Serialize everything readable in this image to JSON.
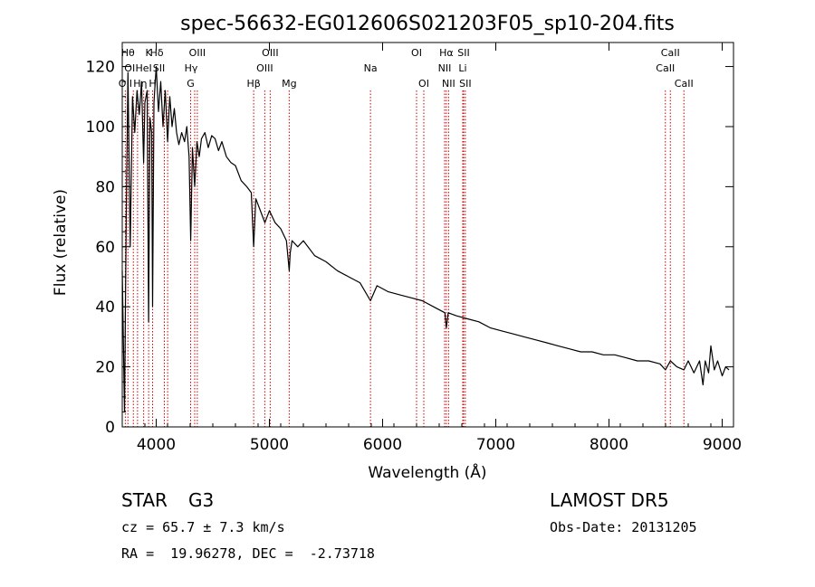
{
  "chart_data": {
    "type": "line",
    "title": "spec-56632-EG012606S021203F05_sp10-204.fits",
    "xlabel": "Wavelength (Å)",
    "ylabel": "Flux (relative)",
    "xlim": [
      3700,
      9100
    ],
    "ylim": [
      0,
      128
    ],
    "xticks": [
      4000,
      5000,
      6000,
      7000,
      8000,
      9000
    ],
    "yticks": [
      0,
      20,
      40,
      60,
      80,
      100,
      120
    ],
    "grid": false,
    "line_color": "#000000",
    "marker_color": "#cc0000",
    "series": [
      {
        "x": [
          3700,
          3720,
          3735,
          3750,
          3770,
          3790,
          3810,
          3830,
          3850,
          3870,
          3889,
          3900,
          3920,
          3933,
          3945,
          3960,
          3968,
          3980,
          4000,
          4020,
          4040,
          4060,
          4080,
          4101,
          4120,
          4140,
          4160,
          4180,
          4200,
          4225,
          4250,
          4270,
          4290,
          4305,
          4320,
          4340,
          4360,
          4380,
          4400,
          4430,
          4460,
          4490,
          4520,
          4550,
          4580,
          4620,
          4660,
          4700,
          4750,
          4800,
          4840,
          4861,
          4880,
          4920,
          4960,
          5000,
          5050,
          5100,
          5150,
          5175,
          5184,
          5200,
          5250,
          5300,
          5400,
          5500,
          5600,
          5700,
          5800,
          5893,
          5950,
          6050,
          6150,
          6250,
          6350,
          6450,
          6550,
          6563,
          6580,
          6650,
          6750,
          6850,
          6950,
          7050,
          7150,
          7250,
          7350,
          7450,
          7550,
          7650,
          7750,
          7850,
          7950,
          8050,
          8150,
          8250,
          8350,
          8450,
          8498,
          8542,
          8600,
          8662,
          8700,
          8750,
          8800,
          8830,
          8850,
          8880,
          8900,
          8930,
          8960,
          9000,
          9030,
          9060
        ],
        "y": [
          52,
          5,
          70,
          118,
          60,
          110,
          98,
          112,
          104,
          115,
          88,
          108,
          112,
          35,
          103,
          98,
          40,
          108,
          120,
          105,
          115,
          100,
          112,
          95,
          110,
          100,
          106,
          98,
          94,
          98,
          95,
          100,
          90,
          62,
          93,
          80,
          95,
          90,
          96,
          98,
          93,
          97,
          96,
          92,
          95,
          90,
          88,
          87,
          82,
          80,
          78,
          60,
          76,
          72,
          68,
          72,
          68,
          66,
          62,
          52,
          58,
          62,
          60,
          62,
          57,
          55,
          52,
          50,
          48,
          42,
          47,
          45,
          44,
          43,
          42,
          40,
          38,
          33,
          38,
          37,
          36,
          35,
          33,
          32,
          31,
          30,
          29,
          28,
          27,
          26,
          25,
          25,
          24,
          24,
          23,
          22,
          22,
          21,
          19,
          22,
          20,
          19,
          22,
          18,
          22,
          14,
          22,
          18,
          27,
          19,
          22,
          17,
          20,
          19
        ]
      }
    ],
    "line_markers": [
      {
        "x": 3727,
        "label": "OII",
        "row": 3,
        "offset": 0
      },
      {
        "x": 3750,
        "label": "Hθ",
        "row": 1,
        "offset": 0
      },
      {
        "x": 3798,
        "label": "OI",
        "row": 2,
        "offset": -4
      },
      {
        "x": 3835,
        "label": "Hη",
        "row": 3,
        "offset": 3
      },
      {
        "x": 3889,
        "label": "HeI",
        "row": 2,
        "offset": 0
      },
      {
        "x": 3933,
        "label": "K",
        "row": 1,
        "offset": 0
      },
      {
        "x": 3968,
        "label": "H",
        "row": 3,
        "offset": 0
      },
      {
        "x": 4072,
        "label": "SII",
        "row": 2,
        "offset": -6
      },
      {
        "x": 4101,
        "label": "Hδ",
        "row": 1,
        "offset": -12
      },
      {
        "x": 4304,
        "label": "G",
        "row": 3,
        "offset": 0
      },
      {
        "x": 4340,
        "label": "Hγ",
        "row": 2,
        "offset": -4
      },
      {
        "x": 4363,
        "label": "OIII",
        "row": 1,
        "offset": 0
      },
      {
        "x": 4861,
        "label": "Hβ",
        "row": 3,
        "offset": 0
      },
      {
        "x": 4959,
        "label": "OIII",
        "row": 2,
        "offset": 0
      },
      {
        "x": 5007,
        "label": "OIII",
        "row": 1,
        "offset": 0
      },
      {
        "x": 5175,
        "label": "Mg",
        "row": 3,
        "offset": 0
      },
      {
        "x": 5893,
        "label": "Na",
        "row": 2,
        "offset": 0
      },
      {
        "x": 6300,
        "label": "OI",
        "row": 1,
        "offset": 0
      },
      {
        "x": 6364,
        "label": "OI",
        "row": 3,
        "offset": 0
      },
      {
        "x": 6548,
        "label": "NII",
        "row": 2,
        "offset": 0
      },
      {
        "x": 6563,
        "label": "Hα",
        "row": 1,
        "offset": 0
      },
      {
        "x": 6583,
        "label": "NII",
        "row": 3,
        "offset": 0
      },
      {
        "x": 6708,
        "label": "Li",
        "row": 2,
        "offset": 0
      },
      {
        "x": 6716,
        "label": "SII",
        "row": 1,
        "offset": 0
      },
      {
        "x": 6731,
        "label": "SII",
        "row": 3,
        "offset": 0
      },
      {
        "x": 8498,
        "label": "CaII",
        "row": 2,
        "offset": 0
      },
      {
        "x": 8542,
        "label": "CaII",
        "row": 1,
        "offset": 0
      },
      {
        "x": 8662,
        "label": "CaII",
        "row": 3,
        "offset": 0
      }
    ]
  },
  "info": {
    "class_label": "STAR",
    "subclass_label": "G3",
    "cz_text": "cz = 65.7 ± 7.3 km/s",
    "radec_text": "RA =  19.96278, DEC =  -2.73718",
    "survey_label": "LAMOST DR5",
    "obs_date_text": "Obs-Date: 20131205"
  }
}
